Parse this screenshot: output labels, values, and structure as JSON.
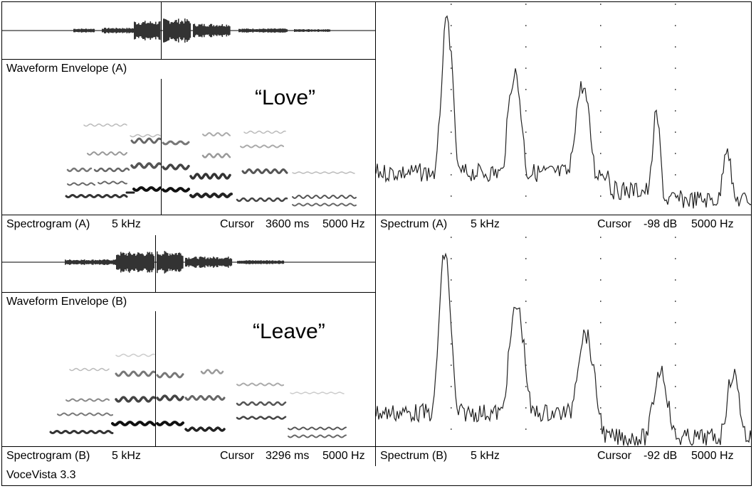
{
  "panels": {
    "A": {
      "waveform_label": "Waveform Envelope (A)",
      "spectrogram_label": "Spectrogram (A)",
      "spectrogram_range": "5 kHz",
      "cursor_label": "Cursor",
      "cursor_time": "3600 ms",
      "cursor_freq": "5000 Hz",
      "word": "“Love”",
      "spectrum_label": "Spectrum (A)",
      "spectrum_range": "5 kHz",
      "spectrum_cursor_label": "Cursor",
      "spectrum_cursor_db": "-98 dB",
      "spectrum_cursor_freq": "5000 Hz"
    },
    "B": {
      "waveform_label": "Waveform Envelope (B)",
      "spectrogram_label": "Spectrogram (B)",
      "spectrogram_range": "5 kHz",
      "cursor_label": "Cursor",
      "cursor_time": "3296 ms",
      "cursor_freq": "5000 Hz",
      "word": "“Leave”",
      "spectrum_label": "Spectrum (B)",
      "spectrum_range": "5 kHz",
      "spectrum_cursor_label": "Cursor",
      "spectrum_cursor_db": "-92 dB",
      "spectrum_cursor_freq": "5000 Hz"
    }
  },
  "status_bar": {
    "app_name": "VoceVista 3.3"
  },
  "colors": {
    "trace": "#222222",
    "background": "#ffffff",
    "grid": "#555555"
  }
}
